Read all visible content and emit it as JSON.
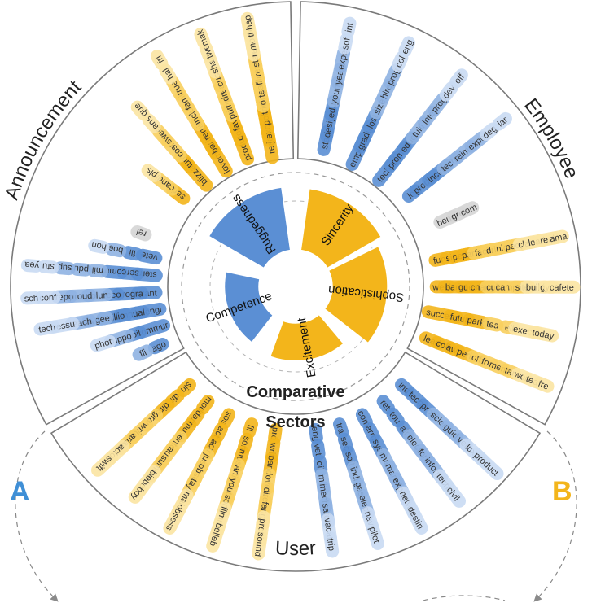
{
  "colors": {
    "blue": "#5b8fd4",
    "blue_mid": "#8fb2e2",
    "blue_light": "#c9daf3",
    "gold": "#f3b51b",
    "gold_mid": "#f8cf5e",
    "gold_light": "#fbe4a2",
    "gray": "#9a9a9a",
    "gray_light": "#d5d5d5",
    "ring": "#7a7a7a",
    "text": "#333333"
  },
  "title_lines": [
    "Comparative",
    "Sectors"
  ],
  "side_labels": [
    {
      "text": "A",
      "color": "#3f8fd6"
    },
    {
      "text": "B",
      "color": "#f3b51b"
    }
  ],
  "sectors": [
    {
      "label": "Announcement"
    },
    {
      "label": "Employee"
    },
    {
      "label": "User"
    }
  ],
  "dimensions": [
    {
      "label": "Ruggedness",
      "value": 0.92,
      "color": "blue"
    },
    {
      "label": "Sincerity",
      "value": 0.9,
      "color": "gold"
    },
    {
      "label": "Sophistication",
      "value": 0.8,
      "color": "gold"
    },
    {
      "label": "Excitement",
      "value": 0.55,
      "color": "gold"
    },
    {
      "label": "Competence",
      "value": 0.5,
      "color": "blue"
    }
  ],
  "word_groups": [
    {
      "id": "announcement-blue",
      "color": "blue",
      "columns": [
        [
          "ago",
          "fli"
        ],
        [
          "commur",
          "oil",
          "suppo",
          "phot"
        ],
        [
          "boengi",
          "annual",
          "millio",
          "avgee",
          "teach",
          "ressu",
          "tech"
        ],
        [
          "grant",
          "progra",
          "ceo",
          "volun",
          "proud",
          "repo",
          "conf",
          "sch"
        ],
        [
          "stern",
          "serv",
          "comm",
          "mil",
          "pdu",
          "sup",
          "stu",
          "yea"
        ],
        [
          "vete",
          "fli",
          "boe",
          "hon"
        ]
      ]
    },
    {
      "id": "announcement-gold",
      "color": "gold",
      "columns": [
        [
          "seri",
          "candi",
          "pls"
        ],
        [
          "blizzar",
          "turn",
          "costu",
          "swee",
          "ans",
          "que"
        ],
        [
          "lovemyd",
          "barbi",
          "remin",
          "inclu",
          "fami",
          "true",
          "hal",
          "fri"
        ],
        [
          "produc",
          "doll",
          "favori",
          "pumpk",
          "drea",
          "cust",
          "shar",
          "twe",
          "mak"
        ],
        [
          "realiti",
          "jame",
          "exchan",
          "polici",
          "trick",
          "origi",
          "team",
          "film",
          "retu",
          "star",
          "rea",
          "movi",
          "tre",
          "hap"
        ]
      ]
    },
    {
      "id": "announcement-gray",
      "color": "gray",
      "columns": [
        [
          "rel"
        ]
      ]
    },
    {
      "id": "employee-blue",
      "color": "blue",
      "columns": [
        [
          "start",
          "design",
          "educ",
          "young",
          "year",
          "expe",
          "sof",
          "int"
        ],
        [
          "employe",
          "gradua",
          "lost",
          "size",
          "hire",
          "prog",
          "col",
          "eng"
        ],
        [
          "technol",
          "promot",
          "educ",
          "tuiti",
          "inte",
          "prog",
          "dev",
          "off"
        ],
        [
          "lot",
          "produc",
          "incent",
          "techn",
          "reimb",
          "expe",
          "deg",
          "lar"
        ]
      ]
    },
    {
      "id": "employee-gray",
      "color": "gray",
      "columns": [
        [
          "bene",
          "gre",
          "com"
        ]
      ]
    },
    {
      "id": "employee-gold",
      "color": "gold",
      "columns": [
        [
          "fun",
          "sit",
          "perk",
          "partn",
          "facil",
          "drin",
          "nice",
          "peop",
          "clas",
          "lead",
          "real",
          "ama"
        ],
        [
          "week",
          "barist",
          "guest",
          "chang",
          "cultu",
          "campu",
          "site",
          "build",
          "gym",
          "cafete"
        ],
        [
          "success",
          "futur",
          "park",
          "tea",
          "ell",
          "execut",
          "today"
        ],
        [
          "lead",
          "coff",
          "awe",
          "perk",
          "off",
          "foo",
          "mem",
          "tar",
          "wor",
          "tea",
          "fre"
        ]
      ]
    },
    {
      "id": "user-gold",
      "color": "gold",
      "columns": [
        [
          "pro",
          "writ",
          "band",
          "love",
          "direc",
          "fangir",
          "pretti",
          "sound"
        ],
        [
          "fil",
          "son",
          "musi",
          "artis",
          "youtu",
          "song",
          "filmma",
          "belleb"
        ],
        [
          "sos",
          "act",
          "actr",
          "just",
          "obses",
          "taylor",
          "maker",
          "obsess"
        ],
        [
          "mod",
          "dan",
          "musi",
          "ente",
          "austi",
          "summe",
          "bieber",
          "boy"
        ],
        [
          "sin",
          "dir",
          "dire",
          "gran",
          "write",
          "arian",
          "actor",
          "swift"
        ]
      ]
    },
    {
      "id": "user-blue",
      "color": "blue",
      "columns": [
        [
          "ind",
          "tech",
          "prot",
          "scien",
          "guid",
          "vet",
          "luxuri",
          "product"
        ],
        [
          "ret",
          "tou",
          "air",
          "elect",
          "forc",
          "inform",
          "tech",
          "civil"
        ],
        [
          "com",
          "arm",
          "syst",
          "mari",
          "manuf",
          "expert",
          "networ",
          "destin"
        ],
        [
          "tra",
          "sec",
          "soft",
          "indi",
          "gas",
          "elect",
          "navi",
          "pilot"
        ],
        [
          "eng",
          "vet",
          "oil",
          "mili",
          "mecha",
          "safet",
          "vacat",
          "trip"
        ]
      ]
    }
  ]
}
